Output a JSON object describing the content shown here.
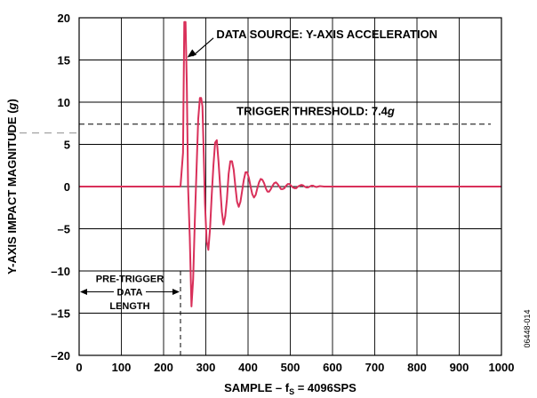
{
  "chart_data": {
    "type": "line",
    "title": "",
    "xlabel": "SAMPLE – f",
    "xlabel_sub": "S",
    "xlabel_tail": " = 4096SPS",
    "ylabel": "Y-AXIS IMPACT MAGNITUDE (",
    "ylabel_unit": "g",
    "ylabel_tail": ")",
    "xlim": [
      0,
      1000
    ],
    "ylim": [
      -20,
      20
    ],
    "x_ticks": [
      0,
      100,
      200,
      300,
      400,
      500,
      600,
      700,
      800,
      900,
      1000
    ],
    "y_ticks": [
      20,
      15,
      10,
      5,
      0,
      -5,
      -10,
      -15,
      -20
    ],
    "y_tick_labels": [
      "20",
      "15",
      "10",
      "5",
      "0",
      "–5",
      "–10",
      "–15",
      "–20"
    ],
    "grid": true,
    "series": [
      {
        "color": "#d9305a",
        "x": [
          0,
          240,
          246,
          249,
          252,
          255,
          258,
          262,
          266,
          270,
          274,
          278,
          282,
          286,
          289,
          292,
          295,
          298,
          302,
          306,
          310,
          314,
          318,
          322,
          326,
          330,
          334,
          338,
          342,
          346,
          350,
          354,
          358,
          362,
          366,
          370,
          374,
          378,
          382,
          386,
          390,
          394,
          398,
          402,
          406,
          410,
          414,
          418,
          422,
          426,
          430,
          434,
          438,
          442,
          446,
          450,
          454,
          458,
          462,
          466,
          470,
          474,
          478,
          482,
          486,
          490,
          494,
          498,
          502,
          506,
          510,
          514,
          518,
          522,
          526,
          530,
          534,
          538,
          542,
          546,
          550,
          554,
          558,
          562,
          566,
          570,
          580,
          600,
          1000
        ],
        "y": [
          0,
          0,
          4,
          19.5,
          19.5,
          12,
          0,
          -6,
          -14.2,
          -11,
          -4,
          2,
          8,
          10.5,
          10.5,
          9.5,
          4,
          -2,
          -6.5,
          -7.5,
          -5,
          -1,
          2.5,
          5.2,
          5.5,
          3,
          0,
          -3,
          -4.5,
          -3.5,
          -1.5,
          1.5,
          3,
          3,
          2,
          0,
          -1.8,
          -2.4,
          -1.8,
          -0.5,
          0.8,
          1.7,
          1.7,
          1,
          0,
          -0.9,
          -1.3,
          -1,
          -0.2,
          0.5,
          0.9,
          0.8,
          0.4,
          -0.2,
          -0.6,
          -0.6,
          -0.3,
          0.1,
          0.4,
          0.5,
          0.3,
          0,
          -0.3,
          -0.3,
          -0.2,
          0.1,
          0.3,
          0.3,
          0.1,
          -0.1,
          -0.2,
          -0.2,
          0,
          0.1,
          0.2,
          0.15,
          0,
          -0.1,
          -0.1,
          0,
          0.1,
          0.1,
          0,
          -0.05,
          0,
          0.05,
          0,
          0,
          0
        ]
      }
    ],
    "annotations": {
      "data_source": "DATA SOURCE: Y-AXIS ACCELERATION",
      "trigger_prefix": "TRIGGER THRESHOLD: 7.4",
      "trigger_unit": "g",
      "trigger_value": 7.4,
      "pretrigger_end": 240,
      "pretrigger_line1": "PRE-TRIGGER",
      "pretrigger_line2": "DATA",
      "pretrigger_line3": "LENGTH"
    },
    "side_code": "06448-014"
  }
}
